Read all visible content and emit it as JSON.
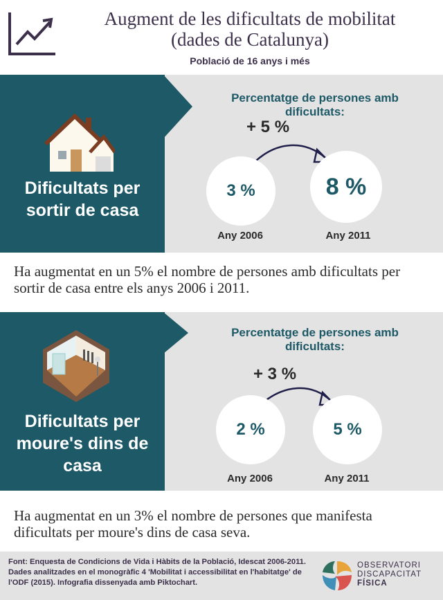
{
  "header": {
    "title_line1": "Augment de les dificultats de mobilitat",
    "title_line2": "(dades de Catalunya)",
    "subtitle": "Població de 16 anys i més"
  },
  "sections": [
    {
      "panel_title_line1": "Dificultats per",
      "panel_title_line2": "sortir de casa",
      "panel_title_line3": "",
      "stat_heading": "Percentatge de persones amb dificultats:",
      "delta": "+ 5 %",
      "from_value": "3 %",
      "to_value": "8 %",
      "from_year": "Any 2006",
      "to_year": "Any 2011",
      "description": "Ha augmentat en un 5% el nombre de persones amb dificultats per sortir de casa entre els anys 2006 i 2011."
    },
    {
      "panel_title_line1": "Dificultats per",
      "panel_title_line2": "moure's dins de",
      "panel_title_line3": "casa",
      "stat_heading": "Percentatge de persones amb dificultats:",
      "delta": "+ 3 %",
      "from_value": "2 %",
      "to_value": "5 %",
      "from_year": "Any 2006",
      "to_year": "Any 2011",
      "description": "Ha augmentat en un 3% el nombre de persones que manifesta dificultats per moure's dins de casa seva."
    }
  ],
  "footer": {
    "line1": "Font: Enquesta de Condicions de Vida i Hàbits de la Població, Idescat 2006-2011.",
    "line2": "Dades analitzades en el monogràfic 4 'Mobilitat i accessibilitat en l'habitatge' de",
    "line3": "l'ODF (2015). Infografia dissenyada amb Piktochart.",
    "logo_line1": "OBSERVATORI",
    "logo_line2": "DISCAPACITAT",
    "logo_line3": "FÍSICA"
  },
  "icons": [
    "line-chart-icon",
    "house-icon",
    "room-icon",
    "curved-arrow-icon",
    "odf-logo-icon"
  ],
  "colors": {
    "teal": "#1d5966",
    "grey": "#e3e3e3",
    "purple": "#3b2f4a"
  }
}
